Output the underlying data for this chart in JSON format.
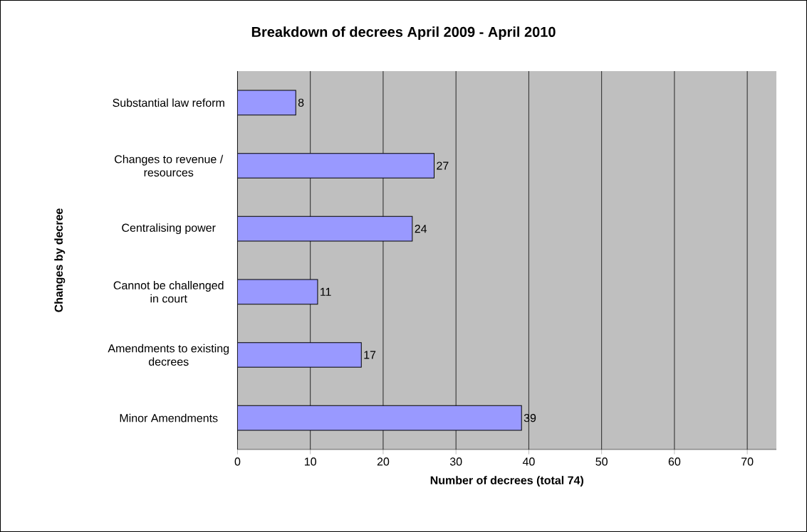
{
  "chart_data": {
    "type": "bar",
    "orientation": "horizontal",
    "title": "Breakdown of decrees April 2009 - April 2010",
    "xlabel": "Number of decrees (total 74)",
    "ylabel": "Changes by decree",
    "categories": [
      "Substantial law reform",
      "Changes to revenue / resources",
      "Centralising power",
      "Cannot be challenged in court",
      "Amendments to existing decrees",
      "Minor Amendments"
    ],
    "values": [
      8,
      27,
      24,
      11,
      17,
      39
    ],
    "color": "#9999ff",
    "data_labels": true,
    "grid": "x",
    "xlim": [
      0,
      74
    ],
    "xticks": [
      0,
      10,
      20,
      30,
      40,
      50,
      60,
      70
    ]
  }
}
